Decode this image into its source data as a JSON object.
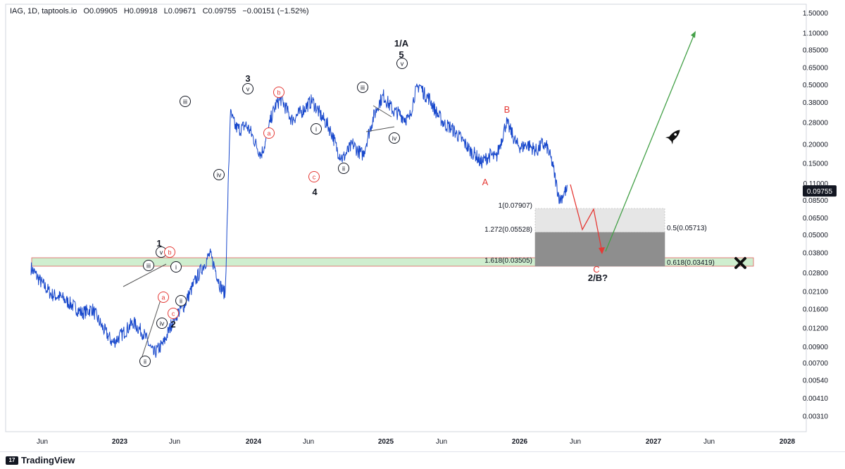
{
  "header": {
    "symbol_line": "IAG, 1D, taptools.io",
    "open": "O0.09905",
    "high": "H0.09918",
    "low": "L0.09671",
    "close": "C0.09755",
    "change": "−0.00151 (−1.52%)"
  },
  "footer": {
    "brand": "TradingView",
    "logo_glyph": "17"
  },
  "chart_data": {
    "type": "line",
    "scale": "log",
    "ylim": [
      0.0026,
      1.6
    ],
    "x_ticks": [
      "Jun",
      "2023",
      "Jun",
      "2024",
      "Jun",
      "2025",
      "Jun",
      "2026",
      "Jun",
      "2027",
      "Jun",
      "2028"
    ],
    "y_ticks": [
      "1.50000",
      "1.10000",
      "0.85000",
      "0.65000",
      "0.50000",
      "0.38000",
      "0.28000",
      "0.20000",
      "0.15000",
      "0.11000",
      "0.08500",
      "0.06500",
      "0.05000",
      "0.03800",
      "0.02800",
      "0.02100",
      "0.01600",
      "0.01200",
      "0.00900",
      "0.00700",
      "0.00540",
      "0.00410",
      "0.00310"
    ],
    "last_price": "0.09755",
    "series": [
      {
        "color": "#1848cc",
        "points": [
          [
            0,
            0.03
          ],
          [
            4,
            0.024
          ],
          [
            8,
            0.02
          ],
          [
            12,
            0.019
          ],
          [
            16,
            0.017
          ],
          [
            20,
            0.015
          ],
          [
            24,
            0.016
          ],
          [
            28,
            0.012
          ],
          [
            32,
            0.0095
          ],
          [
            36,
            0.011
          ],
          [
            40,
            0.013
          ],
          [
            44,
            0.011
          ],
          [
            48,
            0.008
          ],
          [
            52,
            0.0095
          ],
          [
            56,
            0.014
          ],
          [
            60,
            0.017
          ],
          [
            64,
            0.024
          ],
          [
            67,
            0.03
          ],
          [
            70,
            0.037
          ],
          [
            72,
            0.03
          ],
          [
            74,
            0.023
          ],
          [
            76,
            0.02
          ],
          [
            78,
            0.32
          ],
          [
            80,
            0.26
          ],
          [
            82,
            0.25
          ],
          [
            84,
            0.27
          ],
          [
            86,
            0.24
          ],
          [
            88,
            0.2
          ],
          [
            90,
            0.17
          ],
          [
            92,
            0.21
          ],
          [
            94,
            0.3
          ],
          [
            96,
            0.37
          ],
          [
            98,
            0.4
          ],
          [
            100,
            0.34
          ],
          [
            102,
            0.29
          ],
          [
            104,
            0.31
          ],
          [
            106,
            0.33
          ],
          [
            108,
            0.36
          ],
          [
            110,
            0.39
          ],
          [
            112,
            0.34
          ],
          [
            114,
            0.3
          ],
          [
            116,
            0.27
          ],
          [
            118,
            0.23
          ],
          [
            120,
            0.18
          ],
          [
            122,
            0.16
          ],
          [
            124,
            0.18
          ],
          [
            126,
            0.2
          ],
          [
            128,
            0.18
          ],
          [
            130,
            0.17
          ],
          [
            132,
            0.23
          ],
          [
            134,
            0.3
          ],
          [
            136,
            0.37
          ],
          [
            138,
            0.42
          ],
          [
            140,
            0.37
          ],
          [
            142,
            0.33
          ],
          [
            144,
            0.32
          ],
          [
            146,
            0.3
          ],
          [
            148,
            0.29
          ],
          [
            150,
            0.42
          ],
          [
            152,
            0.5
          ],
          [
            154,
            0.43
          ],
          [
            156,
            0.4
          ],
          [
            158,
            0.34
          ],
          [
            160,
            0.3
          ],
          [
            162,
            0.27
          ],
          [
            164,
            0.26
          ],
          [
            166,
            0.24
          ],
          [
            168,
            0.22
          ],
          [
            170,
            0.2
          ],
          [
            172,
            0.18
          ],
          [
            174,
            0.17
          ],
          [
            176,
            0.15
          ],
          [
            178,
            0.16
          ],
          [
            180,
            0.17
          ],
          [
            182,
            0.16
          ],
          [
            184,
            0.21
          ],
          [
            186,
            0.28
          ],
          [
            188,
            0.24
          ],
          [
            190,
            0.2
          ],
          [
            192,
            0.19
          ],
          [
            194,
            0.2
          ],
          [
            196,
            0.19
          ],
          [
            198,
            0.18
          ],
          [
            200,
            0.2
          ],
          [
            202,
            0.19
          ],
          [
            204,
            0.15
          ],
          [
            206,
            0.1
          ],
          [
            207,
            0.085
          ],
          [
            209,
            0.097
          ],
          [
            210,
            0.0976
          ]
        ]
      }
    ],
    "zones": [
      {
        "kind": "support",
        "label": "",
        "from": 0.0345,
        "to": 0.0375,
        "color": "#c8ecc8"
      }
    ],
    "fib": {
      "levels": [
        {
          "label": "1(0.07907)",
          "value": 0.07907
        },
        {
          "label": "1.272(0.05528)",
          "value": 0.05528
        },
        {
          "label": "1.618(0.03505)",
          "value": 0.03505
        }
      ],
      "retracements": [
        {
          "label": "0.5(0.05713)",
          "value": 0.05713
        },
        {
          "label": "0.618(0.03419)",
          "value": 0.03419
        }
      ]
    },
    "annotations": {
      "black": [
        "1",
        "2",
        "3",
        "4",
        "5",
        "1/A",
        "2/B?"
      ],
      "red_letters": [
        "A",
        "B",
        "C"
      ],
      "circled_black": [
        "ii",
        "iii",
        "iv",
        "v",
        "i",
        "ii",
        "iii",
        "iv",
        "v",
        "i",
        "ii",
        "iii",
        "iv",
        "v",
        "iii",
        "iv",
        "i",
        "ii",
        "iii",
        "iv",
        "v"
      ],
      "circled_red": [
        "a",
        "b",
        "c",
        "a",
        "b",
        "c"
      ]
    }
  }
}
